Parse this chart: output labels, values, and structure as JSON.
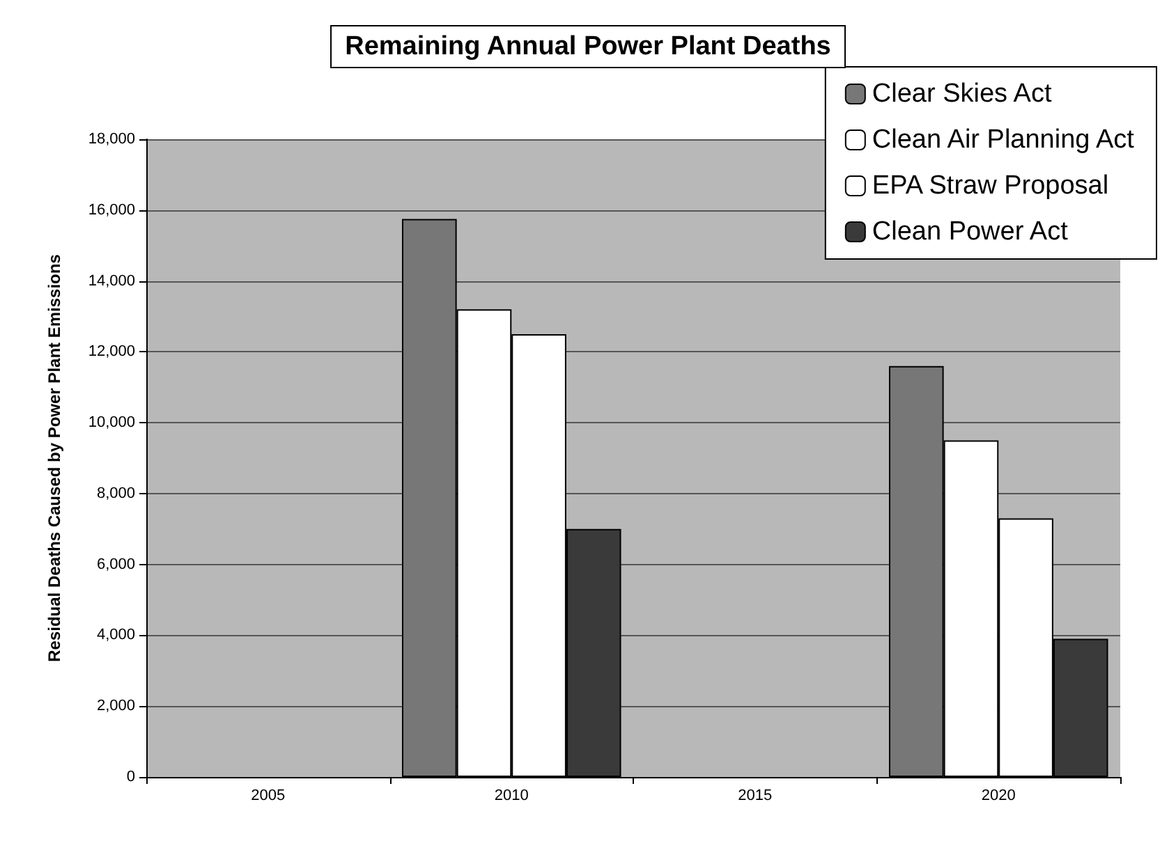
{
  "chart_data": {
    "type": "bar",
    "title": "Remaining Annual Power Plant Deaths",
    "ylabel": "Residual Deaths Caused by Power Plant Emissions",
    "categories": [
      "2005",
      "2010",
      "2015",
      "2020"
    ],
    "series": [
      {
        "name": "Clear Skies Act",
        "color": "#777777",
        "values": [
          null,
          15750,
          null,
          11600
        ]
      },
      {
        "name": "Clean Air Planning Act",
        "color": "#ffffff",
        "values": [
          null,
          13200,
          null,
          9500
        ]
      },
      {
        "name": "EPA Straw Proposal",
        "color": "#ffffff",
        "values": [
          null,
          12500,
          null,
          7300
        ]
      },
      {
        "name": "Clean Power Act",
        "color": "#3a3a3a",
        "values": [
          null,
          7000,
          null,
          3900
        ]
      }
    ],
    "ylim": [
      0,
      18000
    ],
    "yticks": [
      0,
      {
        "value": 2000,
        "label": "2,000"
      },
      {
        "value": 4000,
        "label": "4,000"
      },
      {
        "value": 6000,
        "label": "6,000"
      },
      {
        "value": 8000,
        "label": "8,000"
      },
      {
        "value": 10000,
        "label": "10,000"
      },
      {
        "value": 12000,
        "label": "12,000"
      },
      {
        "value": 14000,
        "label": "14,000"
      },
      {
        "value": 16000,
        "label": "16,000"
      },
      {
        "value": 18000,
        "label": "18,000"
      }
    ],
    "grid": "y",
    "legend": "top right"
  }
}
